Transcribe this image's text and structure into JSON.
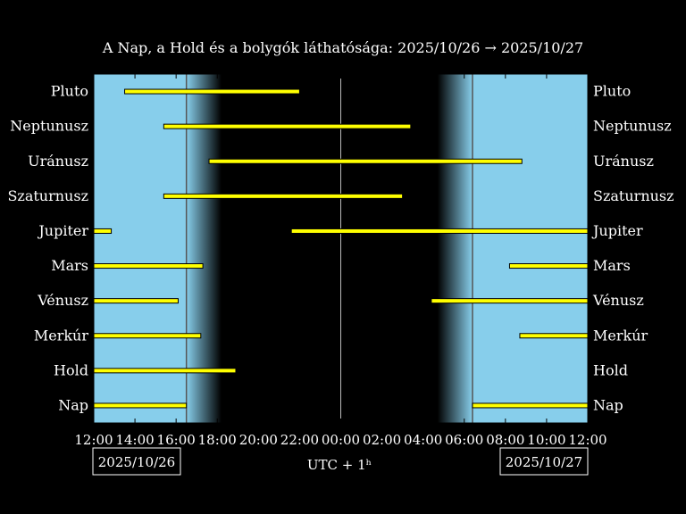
{
  "chart_data": {
    "type": "timeline",
    "title": "A Nap, a Hold és a bolygók láthatósága: 2025/10/26 → 2025/10/27",
    "xlabel": "UTC + 1ʰ",
    "x_range_hours": [
      12,
      36
    ],
    "x_ticks": [
      "12:00",
      "14:00",
      "16:00",
      "18:00",
      "20:00",
      "22:00",
      "00:00",
      "02:00",
      "04:00",
      "06:00",
      "08:00",
      "10:00",
      "12:00"
    ],
    "date_start": "2025/10/26",
    "date_end": "2025/10/27",
    "sunset_hour": 16.5,
    "dusk_end_hour": 18.2,
    "dawn_start_hour": 28.7,
    "sunrise_hour": 30.4,
    "midnight_hour": 24,
    "colors": {
      "day": "#87ceeb",
      "night": "#000000",
      "bar": "#ffff00",
      "text": "#ffffff"
    },
    "rows": [
      {
        "name": "Pluto",
        "intervals": [
          [
            13.5,
            22.0
          ]
        ]
      },
      {
        "name": "Neptunusz",
        "intervals": [
          [
            15.4,
            27.4
          ]
        ]
      },
      {
        "name": "Uránusz",
        "intervals": [
          [
            17.6,
            32.8
          ]
        ]
      },
      {
        "name": "Szaturnusz",
        "intervals": [
          [
            15.4,
            27.0
          ]
        ]
      },
      {
        "name": "Jupiter",
        "intervals": [
          [
            12.0,
            12.85
          ],
          [
            21.6,
            36.0
          ]
        ]
      },
      {
        "name": "Mars",
        "intervals": [
          [
            12.0,
            17.3
          ],
          [
            32.2,
            36.0
          ]
        ]
      },
      {
        "name": "Vénusz",
        "intervals": [
          [
            12.0,
            16.1
          ],
          [
            28.4,
            36.0
          ]
        ]
      },
      {
        "name": "Merkúr",
        "intervals": [
          [
            12.0,
            17.2
          ],
          [
            32.7,
            36.0
          ]
        ]
      },
      {
        "name": "Hold",
        "intervals": [
          [
            12.0,
            18.9
          ]
        ]
      },
      {
        "name": "Nap",
        "intervals": [
          [
            12.0,
            16.5
          ],
          [
            30.4,
            36.0
          ]
        ]
      }
    ]
  }
}
